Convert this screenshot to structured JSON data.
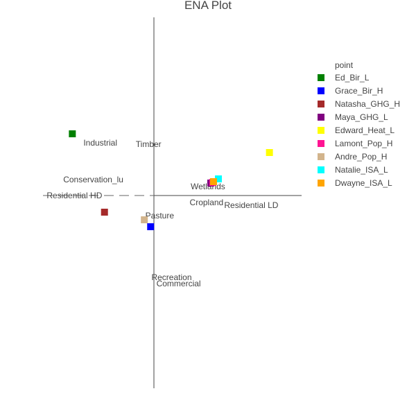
{
  "chart_data": {
    "type": "scatter",
    "title": "ENA Plot",
    "xlabel": "",
    "ylabel": "",
    "xlim": [
      -1.6,
      2.1
    ],
    "ylim": [
      -2.75,
      2.6
    ],
    "grid": false,
    "legend": {
      "title": "point",
      "placement": "right"
    },
    "series": [
      {
        "name": "Ed_Bir_L",
        "color": "#008000",
        "x": [
          -1.18
        ],
        "y": [
          0.92
        ]
      },
      {
        "name": "Grace_Bir_H",
        "color": "#0000ff",
        "x": [
          -0.06
        ],
        "y": [
          -0.42
        ]
      },
      {
        "name": "Natasha_GHG_H",
        "color": "#a52a2a",
        "x": [
          -0.72
        ],
        "y": [
          -0.21
        ]
      },
      {
        "name": "Maya_GHG_L",
        "color": "#800080",
        "x": [
          0.8
        ],
        "y": [
          0.21
        ]
      },
      {
        "name": "Edward_Heat_L",
        "color": "#ffff00",
        "x": [
          1.64
        ],
        "y": [
          0.65
        ]
      },
      {
        "name": "Lamont_Pop_H",
        "color": "#ff1493",
        "x": [
          0.83
        ],
        "y": [
          0.22
        ]
      },
      {
        "name": "Andre_Pop_H",
        "color": "#d2b48c",
        "x": [
          -0.15
        ],
        "y": [
          -0.32
        ]
      },
      {
        "name": "Natalie_ISA_L",
        "color": "#00ffff",
        "x": [
          0.91
        ],
        "y": [
          0.27
        ]
      },
      {
        "name": "Dwayne_ISA_L",
        "color": "#ffa500",
        "x": [
          0.84
        ],
        "y": [
          0.23
        ]
      }
    ],
    "node_labels": [
      {
        "text": "Industrial",
        "x": -0.78,
        "y": 0.75
      },
      {
        "text": "Timber",
        "x": -0.09,
        "y": 0.73
      },
      {
        "text": "Conservation_lu",
        "x": -0.88,
        "y": 0.22
      },
      {
        "text": "Residential HD",
        "x": -1.15,
        "y": -0.01
      },
      {
        "text": "Wetlands",
        "x": 0.76,
        "y": 0.12
      },
      {
        "text": "Cropland",
        "x": 0.74,
        "y": -0.11
      },
      {
        "text": "Residential LD",
        "x": 1.38,
        "y": -0.15
      },
      {
        "text": "Pasture",
        "x": 0.07,
        "y": -0.3
      },
      {
        "text": "Recreation",
        "x": 0.24,
        "y": -1.19
      },
      {
        "text": "Commercial",
        "x": 0.34,
        "y": -1.28
      }
    ]
  }
}
